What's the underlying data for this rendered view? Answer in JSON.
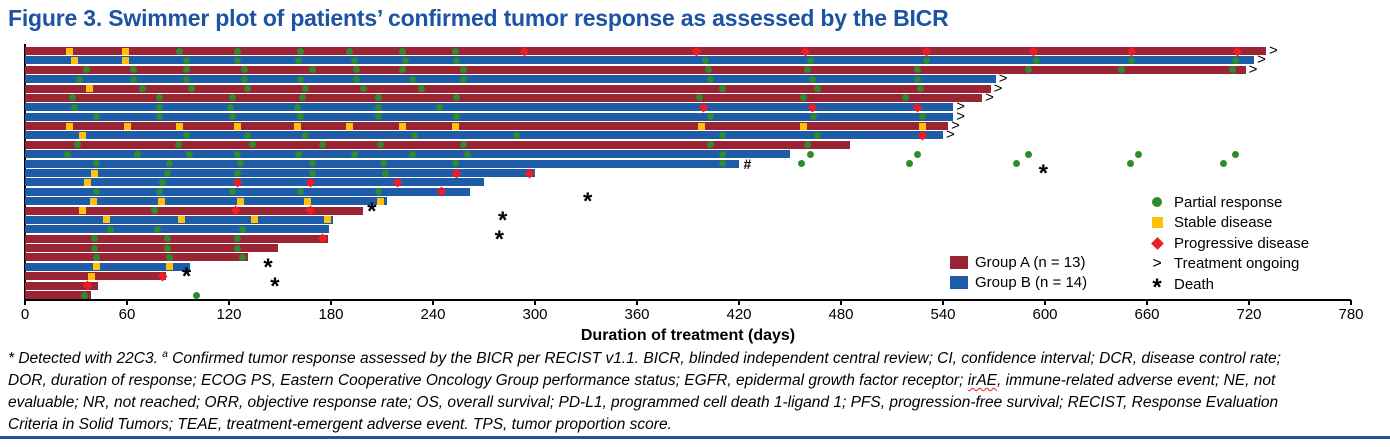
{
  "title": "Figure 3. Swimmer plot of patients’ confirmed tumor response as assessed by the BICR",
  "colors": {
    "title": "#1c53a3",
    "axis": "#000000",
    "partial_response": "#2e8b2e",
    "stable_disease": "#ffc10a",
    "progressive_disease": "#ee1c25",
    "group_a": "#9a2433",
    "group_b": "#1e5ca8",
    "bottom_rule": "#1c53a3"
  },
  "chart_data": {
    "type": "swimmer",
    "xlabel": "Duration of treatment (days)",
    "x_ticks": [
      0,
      60,
      120,
      180,
      240,
      300,
      360,
      420,
      480,
      540,
      600,
      660,
      720,
      780
    ],
    "xlim": [
      0,
      780
    ],
    "grid": false,
    "legend_markers": [
      {
        "type": "pr",
        "label": "Partial response"
      },
      {
        "type": "sd",
        "label": "Stable disease"
      },
      {
        "type": "pd",
        "label": "Progressive disease"
      },
      {
        "type": "ongoing",
        "glyph": ">",
        "label": "Treatment ongoing"
      },
      {
        "type": "death",
        "glyph": "*",
        "label": "Death"
      }
    ],
    "groups": [
      {
        "id": "A",
        "label": "Group A (n = 13)",
        "color": "#9a2433"
      },
      {
        "id": "B",
        "label": "Group B (n = 14)",
        "color": "#1e5ca8"
      }
    ],
    "patients": [
      {
        "g": "A",
        "end": 730,
        "ongoing": true,
        "sd": [
          26,
          59
        ],
        "pr": [
          91,
          125,
          162,
          191,
          222,
          253
        ],
        "pd": [
          294,
          395,
          459,
          530,
          593,
          651,
          713
        ]
      },
      {
        "g": "B",
        "end": 723,
        "ongoing": true,
        "sd": [
          29,
          59
        ],
        "pr": [
          95,
          125,
          161,
          194,
          224,
          254,
          400,
          462,
          530,
          595,
          651,
          712
        ]
      },
      {
        "g": "A",
        "end": 718,
        "ongoing": true,
        "pr": [
          36,
          64,
          95,
          129,
          169,
          195,
          222,
          258,
          402,
          460,
          525,
          590,
          645,
          710
        ]
      },
      {
        "g": "B",
        "end": 571,
        "ongoing": true,
        "pr": [
          32,
          64,
          95,
          129,
          162,
          195,
          228,
          258,
          403,
          463,
          525
        ]
      },
      {
        "g": "A",
        "end": 568,
        "ongoing": true,
        "sd": [
          38
        ],
        "pr": [
          69,
          98,
          131,
          165,
          199,
          233,
          410,
          466,
          527
        ]
      },
      {
        "g": "A",
        "end": 563,
        "ongoing": true,
        "pr": [
          28,
          79,
          122,
          163,
          208,
          254,
          397,
          458,
          518
        ]
      },
      {
        "g": "B",
        "end": 546,
        "ongoing": true,
        "pr": [
          29,
          79,
          121,
          160,
          208,
          244
        ],
        "pd": [
          399,
          463,
          525
        ]
      },
      {
        "g": "B",
        "end": 546,
        "ongoing": true,
        "pr": [
          42,
          79,
          122,
          162,
          208,
          254,
          403,
          464,
          528
        ]
      },
      {
        "g": "A",
        "end": 543,
        "ongoing": true,
        "sd": [
          26,
          60,
          91,
          125,
          160,
          191,
          222,
          253,
          398,
          458,
          528
        ]
      },
      {
        "g": "B",
        "end": 540,
        "ongoing": true,
        "sd": [
          34
        ],
        "pr": [
          95,
          131,
          165,
          229,
          289,
          410,
          466
        ],
        "pd": [
          528
        ]
      },
      {
        "g": "A",
        "end": 485,
        "pr": [
          31,
          90,
          134,
          175,
          209,
          258,
          403,
          460
        ]
      },
      {
        "g": "B",
        "end": 450,
        "pr": [
          25,
          66,
          97,
          125,
          161,
          194,
          228,
          260,
          410,
          462,
          525,
          590,
          655,
          712
        ]
      },
      {
        "g": "B",
        "end": 420,
        "hash": 425,
        "pr": [
          42,
          85,
          127,
          169,
          211,
          253,
          410,
          457,
          520,
          583,
          650,
          705
        ]
      },
      {
        "g": "B",
        "end": 300,
        "sd": [
          41
        ],
        "pr": [
          84,
          125,
          169,
          212
        ],
        "pd": [
          254,
          297
        ],
        "death": 599
      },
      {
        "g": "B",
        "end": 270,
        "sd": [
          37
        ],
        "pr": [
          81
        ],
        "pd": [
          125,
          168,
          219
        ]
      },
      {
        "g": "B",
        "end": 262,
        "pr": [
          42,
          79,
          122,
          162,
          208
        ],
        "pd": [
          245
        ]
      },
      {
        "g": "B",
        "end": 213,
        "sd": [
          40,
          80,
          127,
          166,
          209
        ],
        "death": 331
      },
      {
        "g": "A",
        "end": 199,
        "sd": [
          34
        ],
        "pr": [
          76
        ],
        "pd": [
          124,
          168
        ],
        "death": 204
      },
      {
        "g": "B",
        "end": 181,
        "sd": [
          48,
          92,
          135,
          178
        ],
        "death": 281
      },
      {
        "g": "B",
        "end": 179,
        "pr": [
          50,
          78,
          128
        ]
      },
      {
        "g": "A",
        "end": 178,
        "pr": [
          41,
          84,
          125
        ],
        "pd": [
          175
        ],
        "death": 279
      },
      {
        "g": "A",
        "end": 149,
        "pr": [
          41,
          84,
          125
        ]
      },
      {
        "g": "A",
        "end": 131,
        "pr": [
          42,
          85,
          128
        ]
      },
      {
        "g": "B",
        "end": 97,
        "sd": [
          42,
          85
        ],
        "death": 143
      },
      {
        "g": "A",
        "end": 83,
        "sd": [
          39
        ],
        "pd": [
          81
        ],
        "death": 95
      },
      {
        "g": "A",
        "end": 43,
        "pd": [
          37
        ],
        "death": 147
      },
      {
        "g": "A",
        "end": 39,
        "pr": [
          35,
          101
        ]
      }
    ]
  },
  "footnote": {
    "lines": [
      "* Detected with 22C3. ᵃ Confirmed tumor response assessed by the BICR per RECIST v1.1. BICR, blinded independent central review; CI, confidence interval; DCR, disease control rate;",
      "DOR, duration of response; ECOG PS, Eastern Cooperative Oncology Group performance status; EGFR, epidermal growth factor receptor; irAE, immune-related adverse event; NE, not",
      "evaluable; NR, not reached; ORR, objective response rate; OS, overall survival; PD-L1, programmed cell death 1-ligand 1; PFS, progression-free survival; RECIST, Response Evaluation",
      "Criteria in Solid Tumors; TEAE, treatment-emergent adverse event. TPS, tumor proportion score."
    ]
  }
}
